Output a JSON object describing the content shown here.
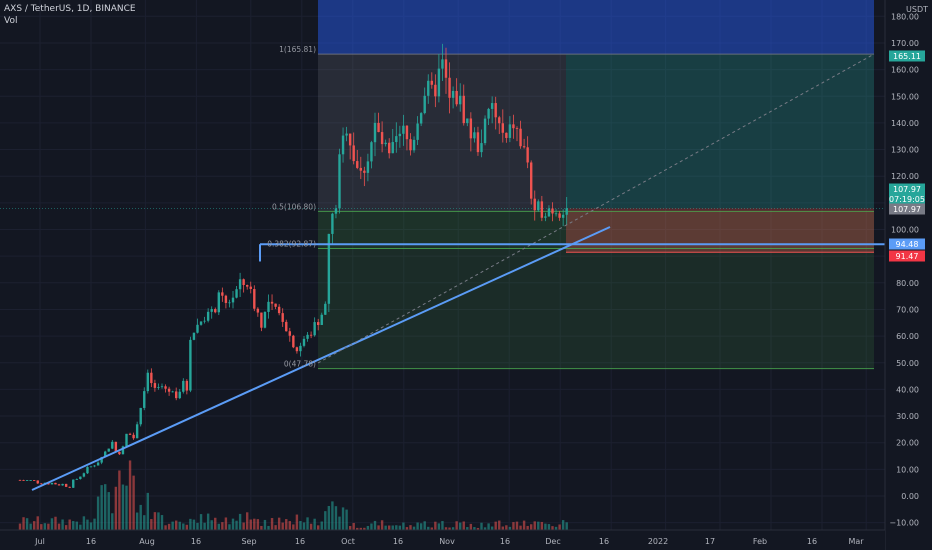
{
  "header": {
    "symbol_line": "AXS / TetherUS, 1D, BINANCE",
    "vol_label": "Vol"
  },
  "currency_label": "USDT",
  "chart_data": {
    "type": "candlestick",
    "symbol": "AXS / TetherUS",
    "interval": "1D",
    "exchange": "BINANCE",
    "y_ticks": [
      -10,
      0,
      10,
      20,
      30,
      40,
      50,
      60,
      70,
      80,
      90,
      100,
      110,
      120,
      130,
      140,
      150,
      160,
      170,
      180
    ],
    "y_tick_labels": [
      "−10.00",
      "0.00",
      "10.00",
      "20.00",
      "30.00",
      "40.00",
      "50.00",
      "60.00",
      "70.00",
      "80.00",
      "90.00",
      "100.00",
      "110.00",
      "120.00",
      "130.00",
      "140.00",
      "150.00",
      "160.00",
      "170.00",
      "180.00"
    ],
    "ylim": [
      -12,
      185
    ],
    "x_ticks": [
      "Jul",
      "16",
      "Aug",
      "16",
      "Sep",
      "16",
      "Oct",
      "16",
      "Nov",
      "16",
      "Dec",
      "16",
      "2022",
      "17",
      "Feb",
      "16",
      "Mar"
    ],
    "fib_levels": [
      {
        "label": "1(165.81)",
        "value": 165.81
      },
      {
        "label": "0.5(106.80)",
        "value": 106.8
      },
      {
        "label": "0.382(92.87)",
        "value": 92.87
      },
      {
        "label": "0(47.78)",
        "value": 47.78
      }
    ],
    "price_badges": [
      {
        "label": "165.11",
        "value": 165.11,
        "color": "#26a69a"
      },
      {
        "label": "107.97",
        "value": 109.3,
        "color": "#26a69a"
      },
      {
        "label": "07:19:05",
        "value": 105.0,
        "color": "#26a69a"
      },
      {
        "label": "107.97",
        "value": 107.97,
        "color": "#787b86"
      },
      {
        "label": "94.48",
        "value": 94.48,
        "color": "#5b9cf6"
      },
      {
        "label": "91.47",
        "value": 91.47,
        "color": "#f23645"
      }
    ],
    "horizontal_line": {
      "value": 94.48,
      "start_label": "0.382(92.87)"
    },
    "colors": {
      "up": "#26a69a",
      "down": "#ef5350",
      "trend": "#5b9cf6",
      "fib": "#787b86"
    }
  }
}
